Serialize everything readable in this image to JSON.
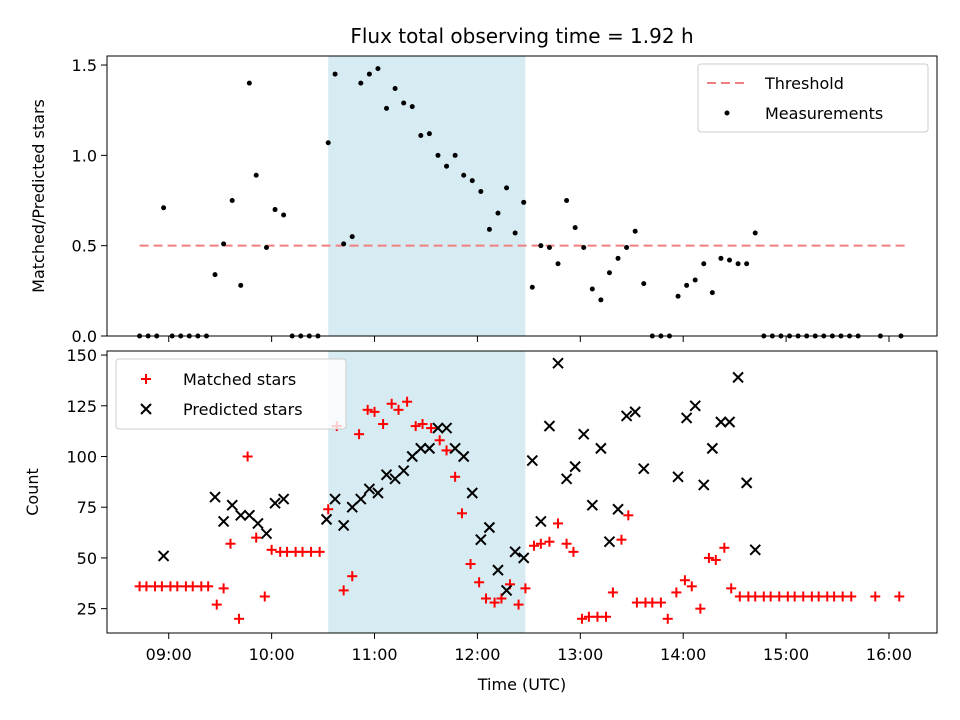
{
  "colors": {
    "threshold": "#f08080",
    "measurement": "#000000",
    "matched": "#ff0000",
    "predicted": "#000000",
    "span": "#add8e6"
  },
  "chart_data": [
    {
      "type": "scatter",
      "title": "Flux total observing time = 1.92 h",
      "xlabel": "",
      "ylabel": "Matched/Predicted stars",
      "x_ticks": [
        "09:00",
        "10:00",
        "11:00",
        "12:00",
        "13:00",
        "14:00",
        "15:00",
        "16:00"
      ],
      "x_tick_labels_visible": false,
      "xlim": [
        "08:24",
        "16:28"
      ],
      "ylim": [
        0,
        1.55
      ],
      "y_ticks": [
        "0.0",
        "0.5",
        "1.0",
        "1.5"
      ],
      "highlight_span": [
        "10:33",
        "12:28"
      ],
      "legend": {
        "position": "upper right",
        "entries": [
          "Threshold",
          "Measurements"
        ]
      },
      "threshold": {
        "name": "Threshold",
        "value": 0.5,
        "x_range": [
          "08:43",
          "16:11"
        ]
      },
      "measurements": {
        "name": "Measurements",
        "points": [
          [
            "08:43",
            0
          ],
          [
            "08:48",
            0
          ],
          [
            "08:53",
            0
          ],
          [
            "08:57",
            0.71
          ],
          [
            "09:02",
            0
          ],
          [
            "09:07",
            0
          ],
          [
            "09:12",
            0
          ],
          [
            "09:17",
            0
          ],
          [
            "09:22",
            0
          ],
          [
            "09:27",
            0.34
          ],
          [
            "09:32",
            0.51
          ],
          [
            "09:37",
            0.75
          ],
          [
            "09:42",
            0.28
          ],
          [
            "09:47",
            1.4
          ],
          [
            "09:51",
            0.89
          ],
          [
            "09:57",
            0.49
          ],
          [
            "10:02",
            0.7
          ],
          [
            "10:07",
            0.67
          ],
          [
            "10:12",
            0
          ],
          [
            "10:17",
            0
          ],
          [
            "10:22",
            0
          ],
          [
            "10:27",
            0
          ],
          [
            "10:33",
            1.07
          ],
          [
            "10:37",
            1.45
          ],
          [
            "10:42",
            0.51
          ],
          [
            "10:47",
            0.55
          ],
          [
            "10:52",
            1.4
          ],
          [
            "10:57",
            1.45
          ],
          [
            "11:02",
            1.48
          ],
          [
            "11:07",
            1.26
          ],
          [
            "11:12",
            1.37
          ],
          [
            "11:17",
            1.29
          ],
          [
            "11:22",
            1.27
          ],
          [
            "11:27",
            1.11
          ],
          [
            "11:32",
            1.12
          ],
          [
            "11:37",
            1.0
          ],
          [
            "11:42",
            0.94
          ],
          [
            "11:47",
            1.0
          ],
          [
            "11:52",
            0.89
          ],
          [
            "11:57",
            0.86
          ],
          [
            "12:02",
            0.8
          ],
          [
            "12:07",
            0.59
          ],
          [
            "12:12",
            0.68
          ],
          [
            "12:17",
            0.82
          ],
          [
            "12:22",
            0.57
          ],
          [
            "12:27",
            0.74
          ],
          [
            "12:32",
            0.27
          ],
          [
            "12:37",
            0.5
          ],
          [
            "12:42",
            0.49
          ],
          [
            "12:47",
            0.4
          ],
          [
            "12:52",
            0.75
          ],
          [
            "12:57",
            0.6
          ],
          [
            "13:02",
            0.49
          ],
          [
            "13:07",
            0.26
          ],
          [
            "13:12",
            0.2
          ],
          [
            "13:17",
            0.35
          ],
          [
            "13:22",
            0.43
          ],
          [
            "13:27",
            0.49
          ],
          [
            "13:32",
            0.58
          ],
          [
            "13:37",
            0.29
          ],
          [
            "13:42",
            0
          ],
          [
            "13:47",
            0
          ],
          [
            "13:52",
            0
          ],
          [
            "13:57",
            0.22
          ],
          [
            "14:02",
            0.28
          ],
          [
            "14:07",
            0.31
          ],
          [
            "14:12",
            0.4
          ],
          [
            "14:17",
            0.24
          ],
          [
            "14:22",
            0.43
          ],
          [
            "14:27",
            0.42
          ],
          [
            "14:32",
            0.4
          ],
          [
            "14:37",
            0.4
          ],
          [
            "14:42",
            0.57
          ],
          [
            "14:47",
            0
          ],
          [
            "14:52",
            0
          ],
          [
            "14:57",
            0
          ],
          [
            "15:02",
            0
          ],
          [
            "15:07",
            0
          ],
          [
            "15:12",
            0
          ],
          [
            "15:17",
            0
          ],
          [
            "15:22",
            0
          ],
          [
            "15:27",
            0
          ],
          [
            "15:32",
            0
          ],
          [
            "15:37",
            0
          ],
          [
            "15:42",
            0
          ],
          [
            "15:55",
            0
          ],
          [
            "16:07",
            0
          ]
        ]
      }
    },
    {
      "type": "scatter",
      "title": "",
      "xlabel": "Time (UTC)",
      "ylabel": "Count",
      "x_ticks": [
        "09:00",
        "10:00",
        "11:00",
        "12:00",
        "13:00",
        "14:00",
        "15:00",
        "16:00"
      ],
      "xlim": [
        "08:24",
        "16:28"
      ],
      "ylim": [
        13,
        152
      ],
      "y_ticks": [
        "25",
        "50",
        "75",
        "100",
        "125",
        "150"
      ],
      "highlight_span": [
        "10:33",
        "12:28"
      ],
      "legend": {
        "position": "upper left",
        "entries": [
          "Matched stars",
          "Predicted stars"
        ]
      },
      "series": [
        {
          "name": "Matched stars",
          "marker": "plus",
          "points": [
            [
              "08:43",
              36
            ],
            [
              "08:47",
              36
            ],
            [
              "08:52",
              36
            ],
            [
              "08:56",
              36
            ],
            [
              "09:01",
              36
            ],
            [
              "09:05",
              36
            ],
            [
              "09:10",
              36
            ],
            [
              "09:14",
              36
            ],
            [
              "09:19",
              36
            ],
            [
              "09:23",
              36
            ],
            [
              "09:28",
              27
            ],
            [
              "09:32",
              35
            ],
            [
              "09:36",
              57
            ],
            [
              "09:41",
              20
            ],
            [
              "09:46",
              100
            ],
            [
              "09:51",
              60
            ],
            [
              "09:56",
              31
            ],
            [
              "10:00",
              54
            ],
            [
              "10:05",
              53
            ],
            [
              "10:09",
              53
            ],
            [
              "10:14",
              53
            ],
            [
              "10:18",
              53
            ],
            [
              "10:23",
              53
            ],
            [
              "10:28",
              53
            ],
            [
              "10:33",
              74
            ],
            [
              "10:38",
              115
            ],
            [
              "10:42",
              34
            ],
            [
              "10:47",
              41
            ],
            [
              "10:51",
              111
            ],
            [
              "10:56",
              123
            ],
            [
              "11:00",
              122
            ],
            [
              "11:05",
              116
            ],
            [
              "11:10",
              126
            ],
            [
              "11:14",
              123
            ],
            [
              "11:19",
              127
            ],
            [
              "11:24",
              115
            ],
            [
              "11:28",
              116
            ],
            [
              "11:33",
              114
            ],
            [
              "11:38",
              108
            ],
            [
              "11:42",
              103
            ],
            [
              "11:47",
              90
            ],
            [
              "11:51",
              72
            ],
            [
              "11:56",
              47
            ],
            [
              "12:01",
              38
            ],
            [
              "12:05",
              30
            ],
            [
              "12:10",
              28
            ],
            [
              "12:14",
              30
            ],
            [
              "12:19",
              37
            ],
            [
              "12:24",
              27
            ],
            [
              "12:28",
              35
            ],
            [
              "12:33",
              56
            ],
            [
              "12:37",
              57
            ],
            [
              "12:42",
              58
            ],
            [
              "12:47",
              67
            ],
            [
              "12:52",
              57
            ],
            [
              "12:56",
              53
            ],
            [
              "13:01",
              20
            ],
            [
              "13:05",
              21
            ],
            [
              "13:10",
              21
            ],
            [
              "13:15",
              21
            ],
            [
              "13:19",
              33
            ],
            [
              "13:24",
              59
            ],
            [
              "13:28",
              71
            ],
            [
              "13:33",
              28
            ],
            [
              "13:38",
              28
            ],
            [
              "13:42",
              28
            ],
            [
              "13:47",
              28
            ],
            [
              "13:51",
              20
            ],
            [
              "13:56",
              33
            ],
            [
              "14:01",
              39
            ],
            [
              "14:05",
              36
            ],
            [
              "14:10",
              25
            ],
            [
              "14:15",
              50
            ],
            [
              "14:19",
              49
            ],
            [
              "14:24",
              55
            ],
            [
              "14:28",
              35
            ],
            [
              "14:33",
              31
            ],
            [
              "14:38",
              31
            ],
            [
              "14:42",
              31
            ],
            [
              "14:47",
              31
            ],
            [
              "14:51",
              31
            ],
            [
              "14:56",
              31
            ],
            [
              "15:01",
              31
            ],
            [
              "15:05",
              31
            ],
            [
              "15:10",
              31
            ],
            [
              "15:15",
              31
            ],
            [
              "15:19",
              31
            ],
            [
              "15:24",
              31
            ],
            [
              "15:28",
              31
            ],
            [
              "15:33",
              31
            ],
            [
              "15:38",
              31
            ],
            [
              "15:52",
              31
            ],
            [
              "16:06",
              31
            ]
          ]
        },
        {
          "name": "Predicted stars",
          "marker": "x",
          "points": [
            [
              "08:57",
              51
            ],
            [
              "09:27",
              80
            ],
            [
              "09:32",
              68
            ],
            [
              "09:37",
              76
            ],
            [
              "09:42",
              71
            ],
            [
              "09:47",
              71
            ],
            [
              "09:52",
              67
            ],
            [
              "09:57",
              62
            ],
            [
              "10:02",
              77
            ],
            [
              "10:07",
              79
            ],
            [
              "10:32",
              69
            ],
            [
              "10:37",
              79
            ],
            [
              "10:42",
              66
            ],
            [
              "10:47",
              75
            ],
            [
              "10:52",
              79
            ],
            [
              "10:57",
              84
            ],
            [
              "11:02",
              82
            ],
            [
              "11:07",
              91
            ],
            [
              "11:12",
              89
            ],
            [
              "11:17",
              93
            ],
            [
              "11:22",
              100
            ],
            [
              "11:27",
              104
            ],
            [
              "11:32",
              104
            ],
            [
              "11:37",
              114
            ],
            [
              "11:42",
              114
            ],
            [
              "11:47",
              104
            ],
            [
              "11:52",
              100
            ],
            [
              "11:57",
              82
            ],
            [
              "12:02",
              59
            ],
            [
              "12:07",
              65
            ],
            [
              "12:12",
              44
            ],
            [
              "12:17",
              34
            ],
            [
              "12:22",
              53
            ],
            [
              "12:27",
              50
            ],
            [
              "12:32",
              98
            ],
            [
              "12:37",
              68
            ],
            [
              "12:42",
              115
            ],
            [
              "12:47",
              146
            ],
            [
              "12:52",
              89
            ],
            [
              "12:57",
              95
            ],
            [
              "13:02",
              111
            ],
            [
              "13:07",
              76
            ],
            [
              "13:12",
              104
            ],
            [
              "13:17",
              58
            ],
            [
              "13:22",
              74
            ],
            [
              "13:27",
              120
            ],
            [
              "13:32",
              122
            ],
            [
              "13:37",
              94
            ],
            [
              "13:57",
              90
            ],
            [
              "14:02",
              119
            ],
            [
              "14:07",
              125
            ],
            [
              "14:12",
              86
            ],
            [
              "14:17",
              104
            ],
            [
              "14:22",
              117
            ],
            [
              "14:27",
              117
            ],
            [
              "14:32",
              139
            ],
            [
              "14:37",
              87
            ],
            [
              "14:42",
              54
            ]
          ]
        }
      ]
    }
  ]
}
